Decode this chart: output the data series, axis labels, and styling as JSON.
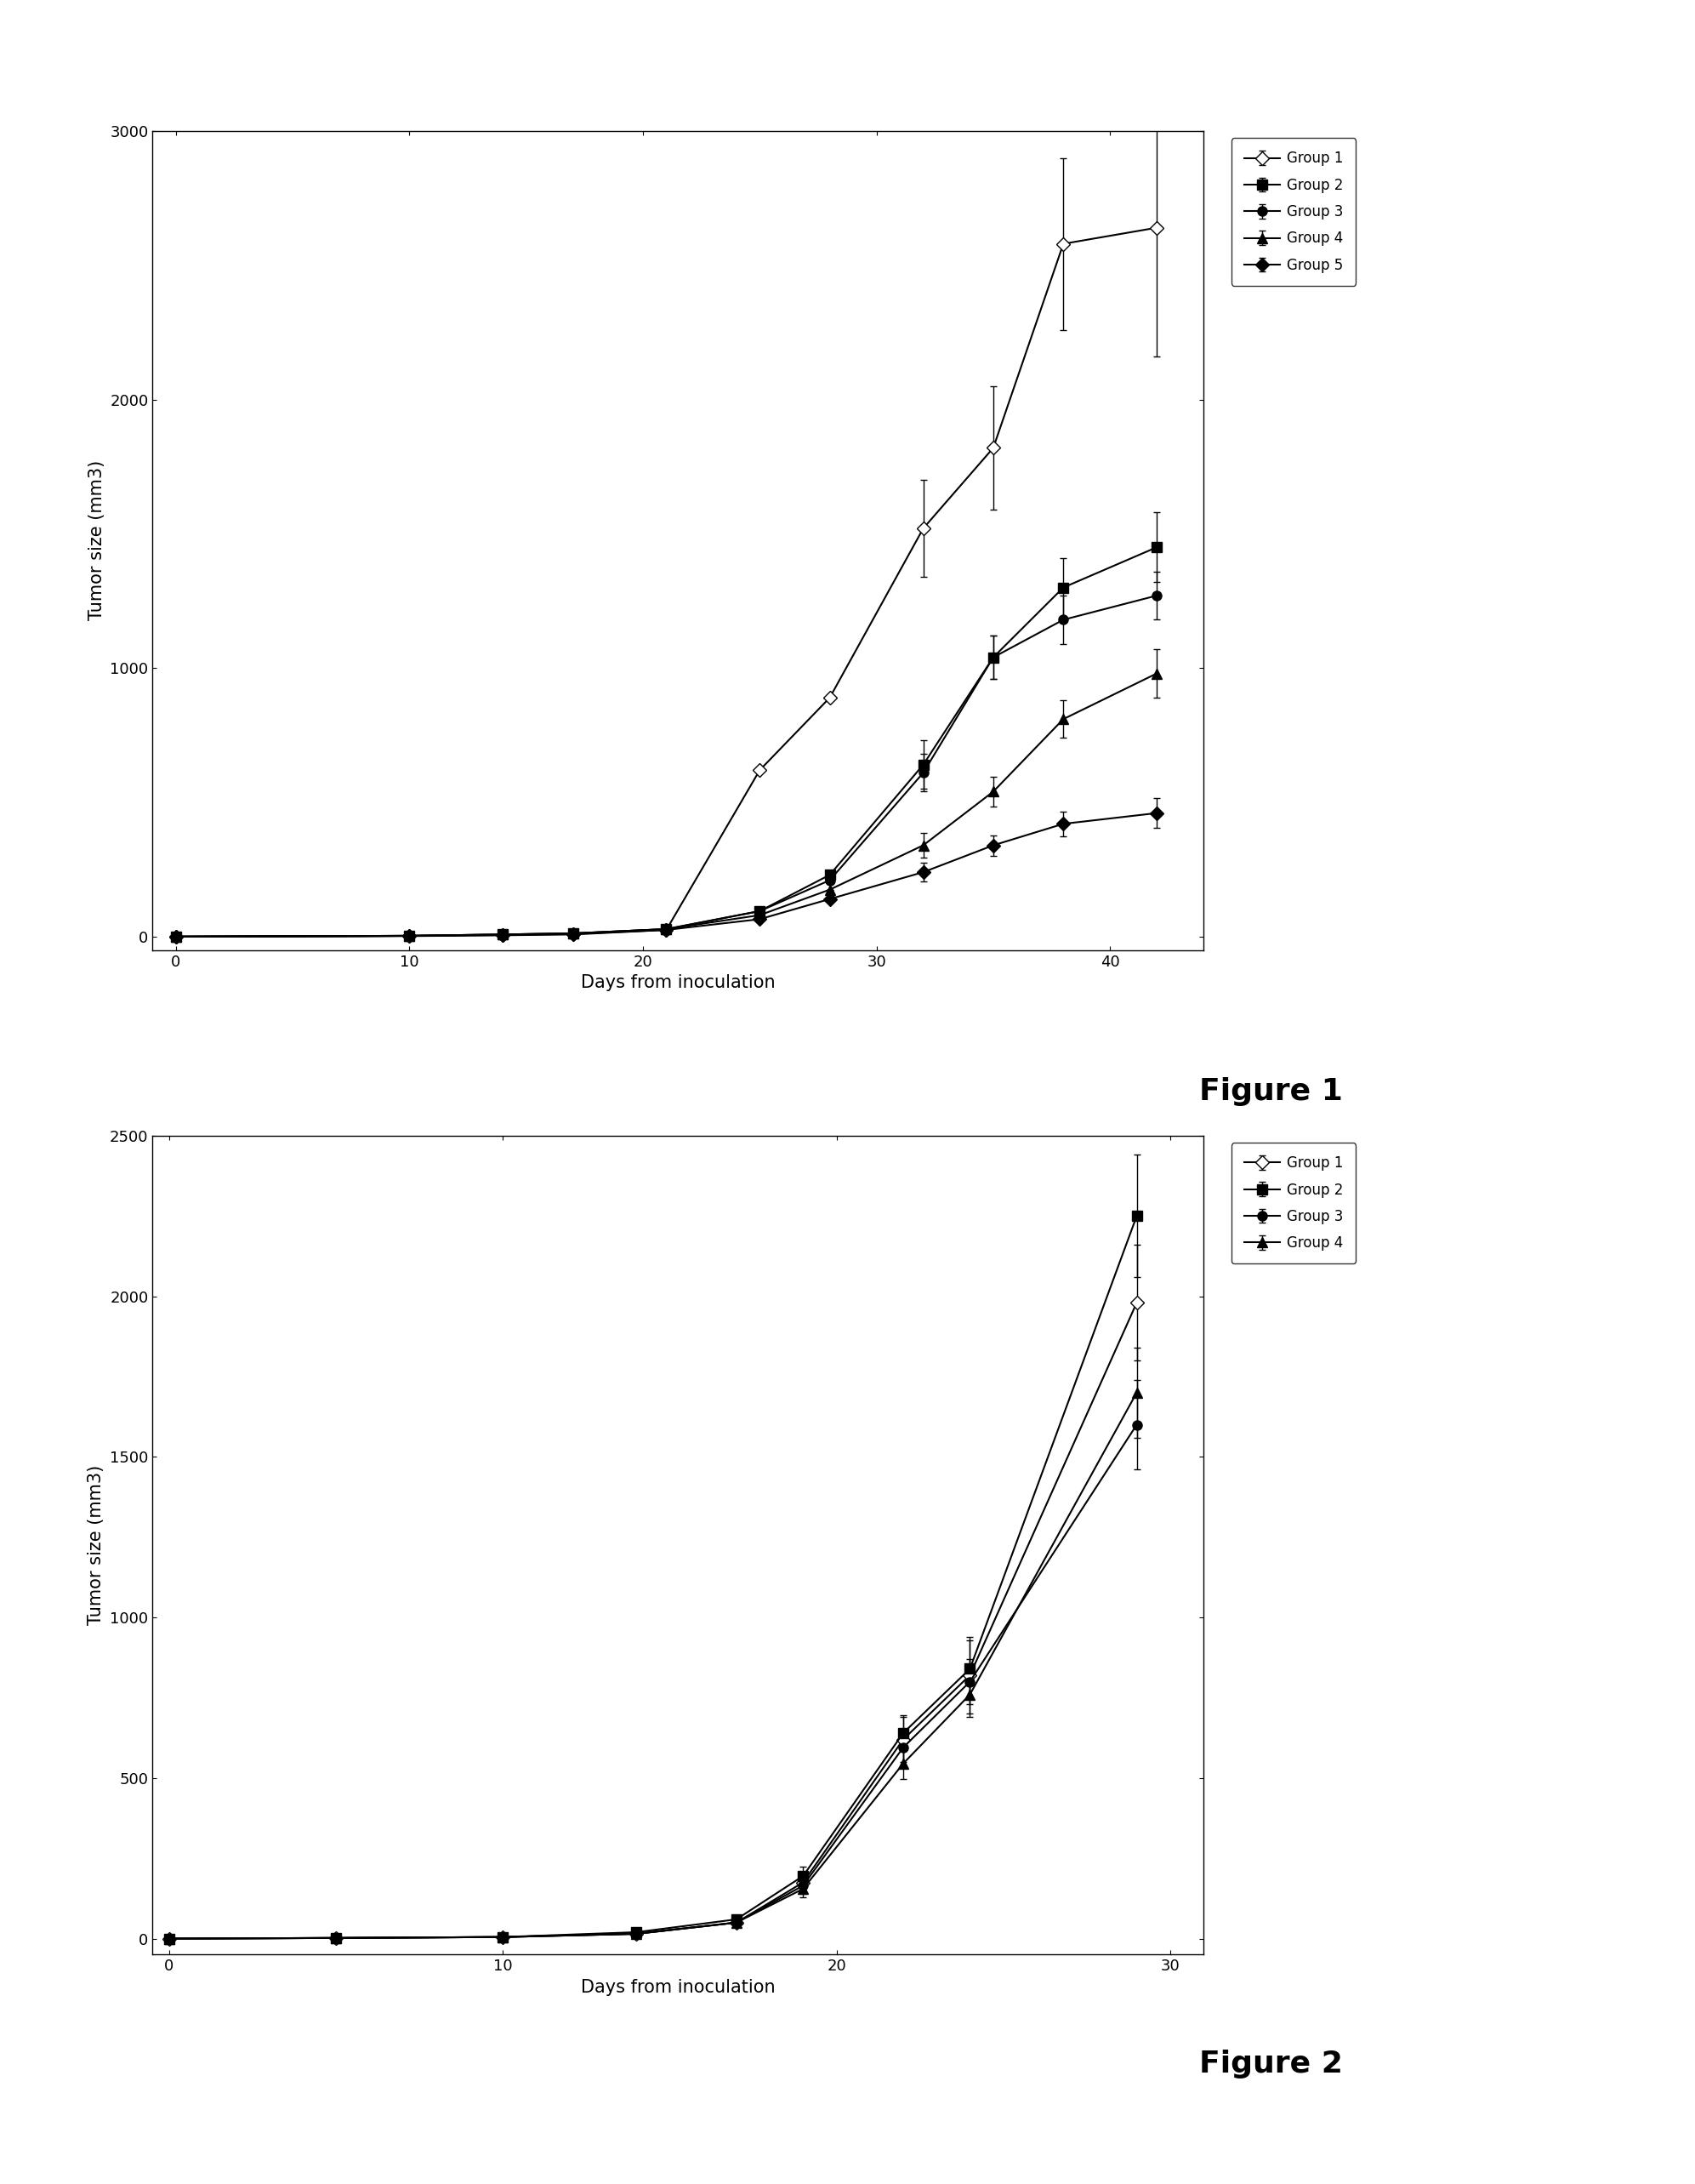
{
  "fig1": {
    "title": "Figure 1",
    "xlabel": "Days from inoculation",
    "ylabel": "Tumor size (mm3)",
    "xlim": [
      -1,
      44
    ],
    "ylim": [
      -50,
      3000
    ],
    "xticks": [
      0,
      10,
      20,
      30,
      40
    ],
    "yticks": [
      0,
      1000,
      2000,
      3000
    ],
    "groups": [
      {
        "label": "Group 1",
        "marker": "D",
        "fillstyle": "none",
        "x": [
          0,
          10,
          14,
          17,
          21,
          25,
          28,
          32,
          35,
          38,
          42
        ],
        "y": [
          0,
          2,
          5,
          8,
          25,
          620,
          890,
          1520,
          1820,
          2580,
          2640
        ],
        "yerr": [
          0,
          0,
          0,
          0,
          0,
          0,
          0,
          180,
          230,
          320,
          480
        ]
      },
      {
        "label": "Group 2",
        "marker": "s",
        "fillstyle": "full",
        "x": [
          0,
          10,
          14,
          17,
          21,
          25,
          28,
          32,
          35,
          38,
          42
        ],
        "y": [
          0,
          3,
          8,
          12,
          28,
          95,
          230,
          640,
          1040,
          1300,
          1450
        ],
        "yerr": [
          0,
          0,
          0,
          0,
          0,
          0,
          0,
          90,
          80,
          110,
          130
        ]
      },
      {
        "label": "Group 3",
        "marker": "o",
        "fillstyle": "full",
        "x": [
          0,
          10,
          14,
          17,
          21,
          25,
          28,
          32,
          35,
          38,
          42
        ],
        "y": [
          0,
          3,
          8,
          12,
          28,
          95,
          210,
          610,
          1040,
          1180,
          1270
        ],
        "yerr": [
          0,
          0,
          0,
          0,
          0,
          0,
          0,
          70,
          80,
          90,
          90
        ]
      },
      {
        "label": "Group 4",
        "marker": "^",
        "fillstyle": "full",
        "x": [
          0,
          10,
          14,
          17,
          21,
          25,
          28,
          32,
          35,
          38,
          42
        ],
        "y": [
          0,
          3,
          8,
          12,
          28,
          80,
          175,
          340,
          540,
          810,
          980
        ],
        "yerr": [
          0,
          0,
          0,
          0,
          0,
          0,
          0,
          45,
          55,
          70,
          90
        ]
      },
      {
        "label": "Group 5",
        "marker": "D",
        "fillstyle": "full",
        "x": [
          0,
          10,
          14,
          17,
          21,
          25,
          28,
          32,
          35,
          38,
          42
        ],
        "y": [
          0,
          3,
          6,
          10,
          25,
          65,
          140,
          240,
          340,
          420,
          460
        ],
        "yerr": [
          0,
          0,
          0,
          0,
          0,
          0,
          0,
          35,
          38,
          45,
          55
        ]
      }
    ]
  },
  "fig2": {
    "title": "Figure 2",
    "xlabel": "Days from inoculation",
    "ylabel": "Tumor size (mm3)",
    "xlim": [
      -0.5,
      31
    ],
    "ylim": [
      -50,
      2500
    ],
    "xticks": [
      0,
      10,
      20,
      30
    ],
    "yticks": [
      0,
      500,
      1000,
      1500,
      2000,
      2500
    ],
    "groups": [
      {
        "label": "Group 1",
        "marker": "D",
        "fillstyle": "none",
        "x": [
          0,
          5,
          10,
          14,
          17,
          19,
          22,
          24,
          29
        ],
        "y": [
          0,
          2,
          5,
          15,
          50,
          175,
          620,
          820,
          1980
        ],
        "yerr": [
          0,
          0,
          0,
          0,
          0,
          30,
          70,
          120,
          180
        ]
      },
      {
        "label": "Group 2",
        "marker": "s",
        "fillstyle": "full",
        "x": [
          0,
          5,
          10,
          14,
          17,
          19,
          22,
          24,
          29
        ],
        "y": [
          0,
          2,
          5,
          20,
          60,
          195,
          640,
          840,
          2250
        ],
        "yerr": [
          0,
          0,
          0,
          0,
          0,
          30,
          55,
          90,
          190
        ]
      },
      {
        "label": "Group 3",
        "marker": "o",
        "fillstyle": "full",
        "x": [
          0,
          5,
          10,
          14,
          17,
          19,
          22,
          24,
          29
        ],
        "y": [
          0,
          2,
          5,
          15,
          50,
          165,
          595,
          800,
          1600
        ],
        "yerr": [
          0,
          0,
          0,
          0,
          0,
          25,
          55,
          70,
          140
        ]
      },
      {
        "label": "Group 4",
        "marker": "^",
        "fillstyle": "full",
        "x": [
          0,
          5,
          10,
          14,
          17,
          19,
          22,
          24,
          29
        ],
        "y": [
          0,
          2,
          5,
          15,
          50,
          155,
          545,
          760,
          1700
        ],
        "yerr": [
          0,
          0,
          0,
          0,
          0,
          25,
          48,
          70,
          140
        ]
      }
    ]
  },
  "background_color": "#ffffff",
  "line_color": "#000000",
  "markersize": 8,
  "linewidth": 1.5,
  "fontsize_label": 15,
  "fontsize_tick": 13,
  "fontsize_legend": 12,
  "fontsize_figure_label": 26,
  "capsize": 3
}
